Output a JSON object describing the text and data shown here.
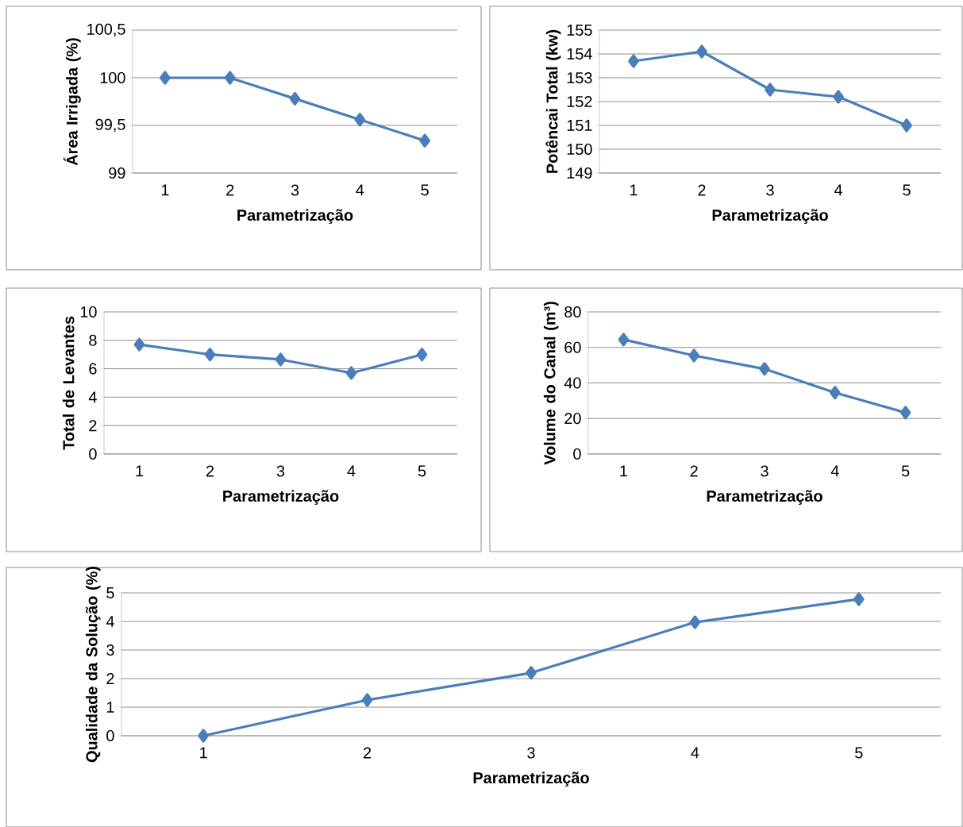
{
  "chart_data": [
    {
      "type": "line",
      "xlabel": "Parametrização",
      "ylabel": "Área Irrigada (%)",
      "categories": [
        "1",
        "2",
        "3",
        "4",
        "5"
      ],
      "values": [
        100,
        100,
        99.78,
        99.56,
        99.34
      ],
      "color": "#4a7ebb",
      "marker": "diamond",
      "line_style": "solid",
      "ylim": [
        99,
        100.5
      ],
      "yticks": [
        99,
        {
          "value": 99.5,
          "label": "99,5"
        },
        100,
        {
          "value": 100.5,
          "label": "100,5"
        }
      ],
      "grid": "y"
    },
    {
      "type": "line",
      "xlabel": "Parametrização",
      "ylabel": "Potêncai Total (kw)",
      "categories": [
        "1",
        "2",
        "3",
        "4",
        "5"
      ],
      "values": [
        153.7,
        154.1,
        152.5,
        152.2,
        151.0
      ],
      "color": "#4a7ebb",
      "marker": "diamond",
      "line_style": "solid",
      "ylim": [
        149,
        155
      ],
      "yticks": [
        149,
        150,
        151,
        152,
        153,
        154,
        155
      ],
      "grid": "y"
    },
    {
      "type": "line",
      "xlabel": "Parametrização",
      "ylabel": "Total de Levantes",
      "categories": [
        "1",
        "2",
        "3",
        "4",
        "5"
      ],
      "values": [
        7.7,
        7.0,
        6.65,
        5.7,
        7.0
      ],
      "color": "#4a7ebb",
      "marker": "diamond",
      "line_style": "solid",
      "ylim": [
        0,
        10
      ],
      "yticks": [
        0,
        2,
        4,
        6,
        8,
        10
      ],
      "grid": "y"
    },
    {
      "type": "line",
      "xlabel": "Parametrização",
      "ylabel": "Volume do Canal (m³)",
      "categories": [
        "1",
        "2",
        "3",
        "4",
        "5"
      ],
      "values": [
        64.4,
        55.4,
        47.9,
        34.5,
        23.3
      ],
      "color": "#4a7ebb",
      "marker": "diamond",
      "line_style": "solid",
      "ylim": [
        0,
        80
      ],
      "yticks": [
        0,
        20,
        40,
        60,
        80
      ],
      "grid": "y"
    },
    {
      "type": "line",
      "xlabel": "Parametrização",
      "ylabel": "Qualidade da Solução (%)",
      "categories": [
        "1",
        "2",
        "3",
        "4",
        "5"
      ],
      "values": [
        0,
        1.25,
        2.2,
        3.97,
        4.78
      ],
      "color": "#4a7ebb",
      "marker": "diamond",
      "line_style": "solid",
      "ylim": [
        0,
        5
      ],
      "yticks": [
        0,
        1,
        2,
        3,
        4,
        5
      ],
      "grid": "y"
    }
  ]
}
